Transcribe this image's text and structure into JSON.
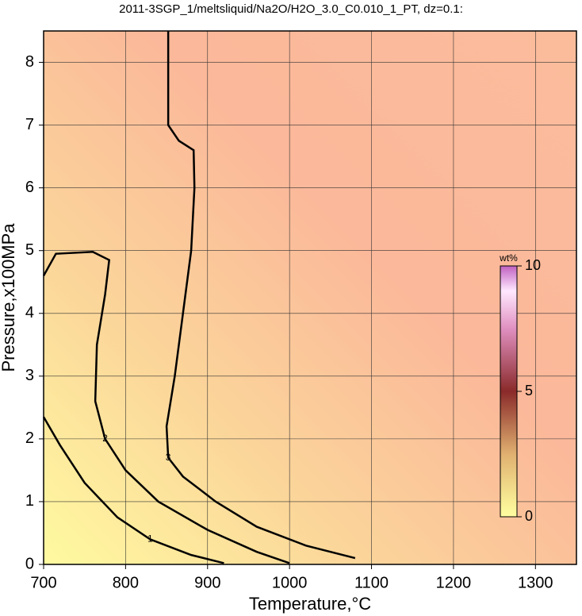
{
  "chart_data": {
    "type": "contour",
    "title": "2011-3SGP_1/meltsliquid/Na2O/H2O_3.0_C0.010_1_PT, dz=0.1:",
    "xlabel": "Temperature,°C",
    "ylabel": "Pressure,x100MPa",
    "xlim": [
      700,
      1350
    ],
    "ylim": [
      0,
      8.5
    ],
    "xticks": [
      700,
      800,
      900,
      1000,
      1100,
      1200,
      1300
    ],
    "yticks": [
      0,
      1,
      2,
      3,
      4,
      5,
      6,
      7,
      8
    ],
    "grid": true,
    "contours": [
      {
        "level": 1,
        "x": [
          700,
          720,
          750,
          790,
          830,
          880,
          920
        ],
        "y": [
          2.35,
          1.9,
          1.3,
          0.75,
          0.4,
          0.15,
          0.02
        ]
      },
      {
        "level": 2,
        "x": [
          700,
          715,
          760,
          780,
          775,
          765,
          763,
          775,
          800,
          840,
          900,
          960,
          1000
        ],
        "y": [
          4.6,
          4.95,
          4.98,
          4.85,
          4.3,
          3.5,
          2.6,
          2.0,
          1.5,
          1.0,
          0.55,
          0.2,
          0.02
        ]
      },
      {
        "level": 3,
        "x": [
          852,
          852,
          865,
          883,
          884,
          880,
          870,
          860,
          850,
          852,
          870,
          910,
          960,
          1020,
          1080
        ],
        "y": [
          8.5,
          7.0,
          6.75,
          6.6,
          6.0,
          5.0,
          4.0,
          3.0,
          2.2,
          1.7,
          1.4,
          1.0,
          0.6,
          0.3,
          0.1
        ]
      }
    ],
    "colorbar": {
      "label": "wt%",
      "lim": [
        0,
        10
      ],
      "ticks": [
        0,
        5,
        10
      ]
    }
  }
}
